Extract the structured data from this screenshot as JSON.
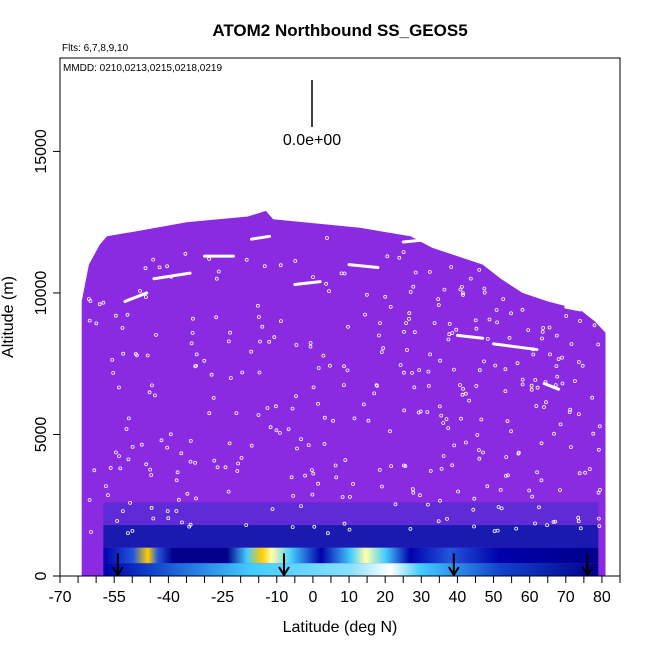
{
  "chart_data": {
    "type": "heatmap",
    "title": "ATOM2 Northbound SS_GEOS5",
    "flights_label": "Flts: 6,7,8,9,10",
    "dates_label": "MMDD: 0210,0213,0215,0218,0219",
    "xlabel": "Latitude (deg N)",
    "ylabel": "Altitude (m)",
    "xlim": [
      -70,
      85
    ],
    "ylim": [
      0,
      18300
    ],
    "x_ticks": [
      -70,
      -55,
      -40,
      -25,
      -10,
      0,
      10,
      20,
      30,
      40,
      50,
      60,
      70,
      80
    ],
    "x_minor_ticks": [
      -65,
      -60,
      -50,
      -45,
      -35,
      -30,
      -20,
      -15,
      -5,
      5,
      15,
      25,
      35,
      45,
      55,
      65,
      75,
      85
    ],
    "y_ticks": [
      0,
      5000,
      10000,
      15000
    ],
    "legend_value_label": "0.0e+00",
    "background_color": "#8a2be2",
    "curtain_top": [
      {
        "lat": -64,
        "alt": 9700
      },
      {
        "lat": -62,
        "alt": 11000
      },
      {
        "lat": -59,
        "alt": 11700
      },
      {
        "lat": -57,
        "alt": 12000
      },
      {
        "lat": -48,
        "alt": 12200
      },
      {
        "lat": -35,
        "alt": 12500
      },
      {
        "lat": -18,
        "alt": 12700
      },
      {
        "lat": -13,
        "alt": 12900
      },
      {
        "lat": -11,
        "alt": 12600
      },
      {
        "lat": 13,
        "alt": 12300
      },
      {
        "lat": 27,
        "alt": 12000
      },
      {
        "lat": 33,
        "alt": 11600
      },
      {
        "lat": 47,
        "alt": 11000
      },
      {
        "lat": 52,
        "alt": 10500
      },
      {
        "lat": 58,
        "alt": 10000
      },
      {
        "lat": 65,
        "alt": 9700
      },
      {
        "lat": 74,
        "alt": 9400
      },
      {
        "lat": 78,
        "alt": 9000
      },
      {
        "lat": 81,
        "alt": 8600
      }
    ],
    "hotspots": [
      {
        "lat": -54,
        "alt": 750,
        "intensity": 1.0
      },
      {
        "lat": -22,
        "alt": 750,
        "intensity": 1.0
      },
      {
        "lat": -8,
        "alt": 750,
        "intensity": 0.55
      },
      {
        "lat": 5,
        "alt": 750,
        "intensity": 0.65
      },
      {
        "lat": 10,
        "alt": 750,
        "intensity": 0.6
      },
      {
        "lat": 18,
        "alt": 350,
        "intensity": 0.5
      },
      {
        "lat": 28,
        "alt": 350,
        "intensity": 0.4
      },
      {
        "lat": 38,
        "alt": 750,
        "intensity": 0.35
      }
    ],
    "arrow_latitudes": [
      -54,
      -8,
      39,
      76
    ]
  }
}
